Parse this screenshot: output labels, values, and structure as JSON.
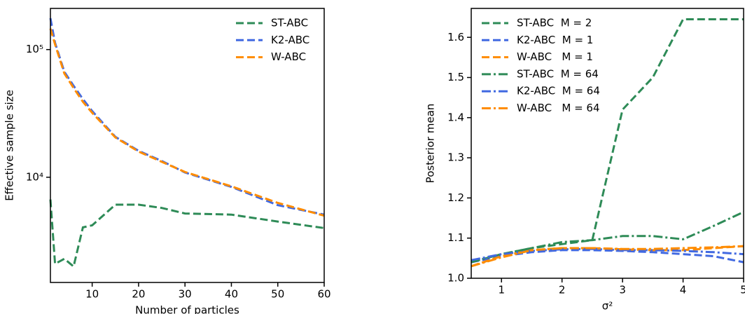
{
  "chart_data": [
    {
      "type": "line",
      "xlabel": "Number of particles",
      "ylabel": "Effective sample size",
      "log_y": true,
      "legend": "upper right",
      "x": [
        1,
        2,
        4,
        6,
        8,
        10,
        15,
        20,
        25,
        30,
        40,
        50,
        60
      ],
      "xlim": [
        1,
        60
      ],
      "xticks": [
        10,
        20,
        30,
        40,
        50,
        60
      ],
      "ylim": [
        1500,
        210000
      ],
      "yticks": [
        {
          "value": 10000,
          "label": "10⁴"
        },
        {
          "value": 100000,
          "label": "10⁵"
        }
      ],
      "series": [
        {
          "name": "ST-ABC",
          "color": "#2e8b57",
          "dash": "dashed",
          "values": [
            6700,
            2100,
            2300,
            2000,
            4050,
            4200,
            6100,
            6100,
            5750,
            5200,
            5100,
            4500,
            4000
          ]
        },
        {
          "name": "K2-ABC",
          "color": "#4169e1",
          "dash": "dashed",
          "values": [
            176000,
            113000,
            67000,
            52000,
            41000,
            33000,
            20700,
            16100,
            13400,
            10900,
            8400,
            6050,
            5100
          ]
        },
        {
          "name": "W-ABC",
          "color": "#ff8c00",
          "dash": "dashed",
          "values": [
            146000,
            110000,
            65000,
            50000,
            39000,
            32000,
            20500,
            15900,
            13200,
            11000,
            8500,
            6300,
            5000
          ]
        }
      ]
    },
    {
      "type": "line",
      "xlabel": "σ²",
      "ylabel": "Posterior mean",
      "log_y": false,
      "legend": "upper left",
      "x": [
        0.5,
        1,
        1.5,
        2,
        2.5,
        3,
        3.5,
        4,
        4.5,
        5
      ],
      "xlim": [
        0.5,
        5
      ],
      "xticks": [
        1,
        2,
        3,
        4,
        5
      ],
      "ylim": [
        1.0,
        1.672
      ],
      "yticks": [
        {
          "value": 1.0,
          "label": "1.0"
        },
        1.1,
        1.2,
        1.3,
        1.4,
        1.5,
        1.6
      ],
      "series": [
        {
          "name": "ST-ABC  M = 2",
          "color": "#2e8b57",
          "dash": "dashed",
          "values": [
            1.04,
            1.06,
            1.075,
            1.085,
            1.095,
            1.42,
            1.5,
            1.645,
            1.645,
            1.645
          ]
        },
        {
          "name": "K2-ABC  M = 1",
          "color": "#4169e1",
          "dash": "dashed",
          "values": [
            1.04,
            1.055,
            1.065,
            1.07,
            1.07,
            1.068,
            1.065,
            1.06,
            1.055,
            1.04
          ]
        },
        {
          "name": "W-ABC   M = 1",
          "color": "#ff8c00",
          "dash": "dashed",
          "values": [
            1.03,
            1.055,
            1.07,
            1.075,
            1.075,
            1.072,
            1.07,
            1.07,
            1.075,
            1.08
          ]
        },
        {
          "name": "ST-ABC  M = 64",
          "color": "#2e8b57",
          "dash": "dashdot",
          "values": [
            1.04,
            1.06,
            1.075,
            1.09,
            1.095,
            1.105,
            1.105,
            1.097,
            1.13,
            1.165
          ]
        },
        {
          "name": "K2-ABC  M = 64",
          "color": "#4169e1",
          "dash": "dashdot",
          "values": [
            1.045,
            1.06,
            1.068,
            1.072,
            1.073,
            1.07,
            1.07,
            1.068,
            1.065,
            1.06
          ]
        },
        {
          "name": "W-ABC   M = 64",
          "color": "#ff8c00",
          "dash": "dashdot",
          "values": [
            1.03,
            1.052,
            1.07,
            1.075,
            1.075,
            1.073,
            1.073,
            1.075,
            1.077,
            1.08
          ]
        }
      ]
    }
  ]
}
